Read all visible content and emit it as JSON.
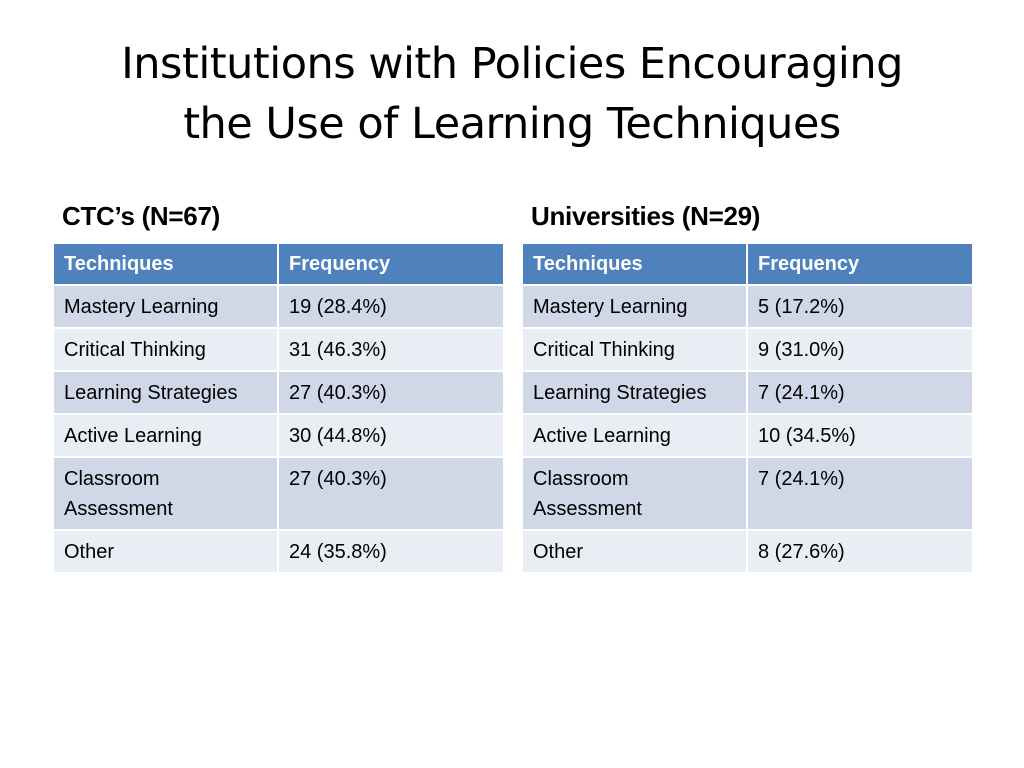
{
  "title": {
    "line1": "Institutions with Policies Encouraging",
    "line2": "the Use of Learning Techniques"
  },
  "left_table": {
    "heading": "CTC’s (N=67)",
    "columns": [
      "Techniques",
      "Frequency"
    ],
    "rows": [
      [
        "Mastery Learning",
        "19 (28.4%)"
      ],
      [
        "Critical Thinking",
        "31 (46.3%)"
      ],
      [
        "Learning Strategies",
        "27 (40.3%)"
      ],
      [
        "Active Learning",
        "30 (44.8%)"
      ],
      [
        "Classroom Assessment",
        "27 (40.3%)"
      ],
      [
        "Other",
        "24 (35.8%)"
      ]
    ]
  },
  "right_table": {
    "heading": "Universities (N=29)",
    "columns": [
      "Techniques",
      "Frequency"
    ],
    "rows": [
      [
        "Mastery Learning",
        "5 (17.2%)"
      ],
      [
        "Critical Thinking",
        "9 (31.0%)"
      ],
      [
        "Learning Strategies",
        "7 (24.1%)"
      ],
      [
        "Active Learning",
        "10 (34.5%)"
      ],
      [
        "Classroom Assessment",
        "7 (24.1%)"
      ],
      [
        "Other",
        "8 (27.6%)"
      ]
    ]
  },
  "colors": {
    "header_bg": "#4f81bd",
    "row_odd_bg": "#d0d8e8",
    "row_even_bg": "#e9edf4"
  }
}
